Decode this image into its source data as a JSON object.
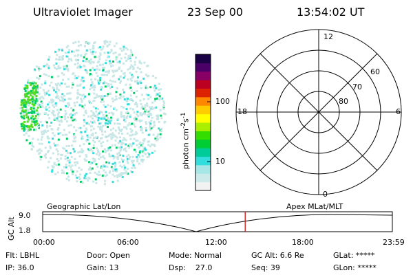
{
  "header": {
    "instrument": "Ultraviolet Imager",
    "date": "23 Sep 00",
    "time": "13:54:02 UT"
  },
  "colorbar": {
    "unit_base": "photon cm",
    "exp1": "-2",
    "unit_mid": "s",
    "exp2": "-1",
    "ticks": [
      "100",
      "10"
    ],
    "colors": [
      "#f2f2f2",
      "#cceaea",
      "#a6e6e6",
      "#33dddd",
      "#00cc99",
      "#00cc33",
      "#33dd00",
      "#aaee00",
      "#ffff00",
      "#ffcc00",
      "#ff8800",
      "#dd2200",
      "#bb0022",
      "#880066",
      "#4a0066",
      "#1a0044"
    ]
  },
  "image": {
    "colors": {
      "background_spots": "#c9e6e6",
      "spots_mid": "#33dddd",
      "spots_bright": "#00cc66",
      "aurora": "#55dd22"
    }
  },
  "polar": {
    "mlt_labels": {
      "top": "12",
      "left": "18",
      "right": "6",
      "bottom": "0"
    },
    "lat_labels": [
      "60",
      "70",
      "80"
    ]
  },
  "timeline": {
    "left_title": "Geographic Lat/Lon",
    "right_title": "Apex MLat/MLT",
    "ylabel": "GC Alt",
    "ymax": "9.0",
    "ymin": "1.8",
    "ticks": [
      "00:00",
      "06:00",
      "12:00",
      "18:00",
      "23:59"
    ],
    "current_time_hours": 13.9,
    "marker_color": "#cc0000"
  },
  "status": {
    "flt": "Flt: LBHL",
    "ip": "IP: 36.0",
    "door": "Door: Open",
    "gain": "Gain: 13",
    "mode": "Mode: Normal",
    "dsp": "Dsp:    27.0",
    "gcalt": "GC Alt: 6.6 Re",
    "seq": "Seq: 39",
    "glat": "GLat: *****",
    "glon": "GLon: *****"
  }
}
